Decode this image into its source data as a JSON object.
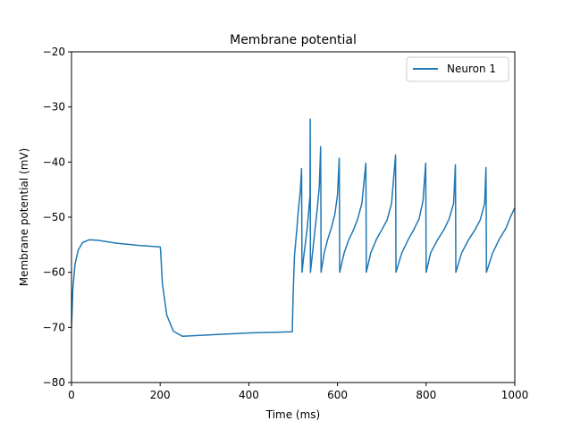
{
  "chart_data": {
    "type": "line",
    "title": "Membrane potential",
    "xlabel": "Time (ms)",
    "ylabel": "Membrane potential (mV)",
    "xlim": [
      0,
      1000
    ],
    "ylim": [
      -80,
      -20
    ],
    "x_ticks": [
      0,
      200,
      400,
      600,
      800,
      1000
    ],
    "y_ticks": [
      -80,
      -70,
      -60,
      -50,
      -40,
      -30,
      -20
    ],
    "x_tick_labels": [
      "0",
      "200",
      "400",
      "600",
      "800",
      "1000"
    ],
    "y_tick_labels": [
      "−80",
      "−70",
      "−60",
      "−50",
      "−40",
      "−30",
      "−20"
    ],
    "grid": false,
    "legend_position": "top-right",
    "series": [
      {
        "name": "Neuron 1",
        "color": "#1f77b4",
        "x": [
          0,
          3,
          8,
          15,
          25,
          40,
          60,
          100,
          150,
          200,
          201,
          205,
          215,
          230,
          250,
          300,
          400,
          498,
          500,
          503,
          508,
          512,
          516,
          519,
          519.5,
          520,
          524,
          528,
          532,
          536,
          538,
          538.5,
          539,
          543,
          547,
          551,
          555,
          559,
          562,
          562.5,
          563,
          570,
          578,
          586,
          594,
          600,
          604,
          604.5,
          605,
          615,
          625,
          635,
          645,
          655,
          664,
          664.5,
          665,
          675,
          688,
          700,
          712,
          722,
          731,
          731.5,
          732,
          745,
          760,
          772,
          784,
          793,
          799,
          799.5,
          800,
          810,
          825,
          840,
          852,
          862,
          866,
          866.5,
          867,
          880,
          895,
          910,
          922,
          932,
          935,
          935.5,
          936,
          950,
          965,
          980,
          990,
          1000
        ],
        "y": [
          -70,
          -63,
          -58.5,
          -56,
          -54.6,
          -54.1,
          -54.2,
          -54.7,
          -55.1,
          -55.4,
          -56,
          -62,
          -67.8,
          -70.7,
          -71.6,
          -71.4,
          -71,
          -70.8,
          -64,
          -57,
          -52.5,
          -48.5,
          -45.5,
          -41.2,
          -50,
          -60,
          -57,
          -54.5,
          -51.8,
          -48,
          -46,
          -32.2,
          -60,
          -57,
          -54,
          -51,
          -48,
          -44.5,
          -37.2,
          -45,
          -60,
          -56.5,
          -54,
          -52,
          -49.5,
          -46,
          -39.3,
          -48,
          -60,
          -56.5,
          -54.2,
          -52.5,
          -50.5,
          -47.5,
          -40.2,
          -48,
          -60,
          -56.5,
          -54,
          -52.3,
          -50.5,
          -47.5,
          -38.7,
          -48,
          -60,
          -56.5,
          -54,
          -52.3,
          -50.3,
          -47,
          -40.2,
          -48,
          -60,
          -56.5,
          -54.2,
          -52.3,
          -50.3,
          -47.5,
          -40.5,
          -48,
          -60,
          -56.5,
          -54.2,
          -52.3,
          -50.5,
          -47.5,
          -41,
          -48,
          -60,
          -56.5,
          -54,
          -52,
          -50,
          -48.3
        ]
      }
    ]
  }
}
